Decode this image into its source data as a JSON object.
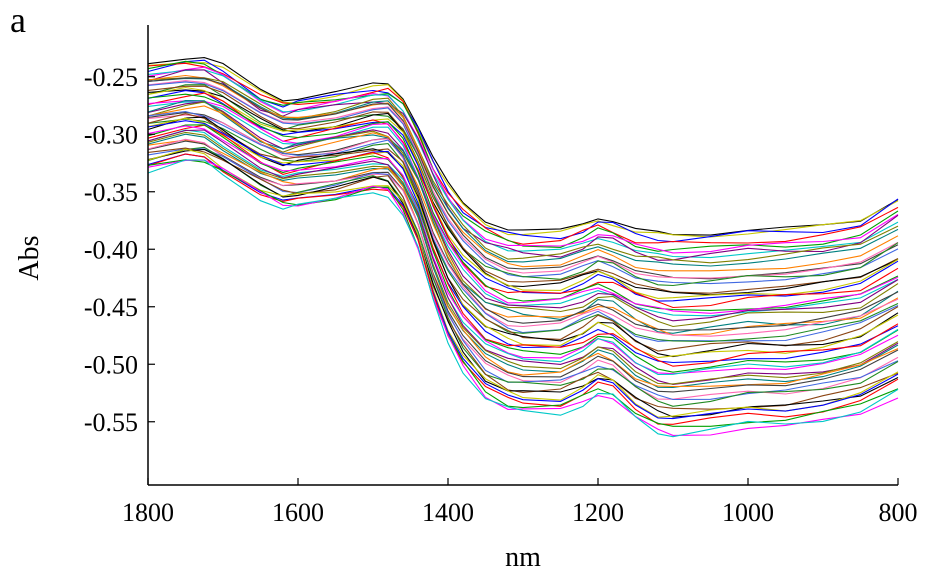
{
  "chart_data": {
    "type": "line",
    "panel_label": "a",
    "title": "",
    "xlabel": "nm",
    "ylabel": "Abs",
    "x_reversed": true,
    "xlim": [
      1800,
      800
    ],
    "ylim": [
      -0.605,
      -0.205
    ],
    "x_ticks": [
      1800,
      1600,
      1400,
      1200,
      1000,
      800
    ],
    "x_tick_labels": [
      "1800",
      "1600",
      "1400",
      "1200",
      "1000",
      "800"
    ],
    "y_ticks": [
      -0.25,
      -0.3,
      -0.35,
      -0.4,
      -0.45,
      -0.5,
      -0.55
    ],
    "y_tick_labels": [
      "-0.25",
      "-0.30",
      "-0.35",
      "-0.40",
      "-0.45",
      "-0.50",
      "-0.55"
    ],
    "grid": false,
    "legend": "none",
    "series_count": 55,
    "x": [
      1800,
      1750,
      1725,
      1700,
      1650,
      1620,
      1600,
      1550,
      1500,
      1480,
      1460,
      1440,
      1420,
      1400,
      1380,
      1350,
      1320,
      1300,
      1250,
      1220,
      1200,
      1180,
      1150,
      1120,
      1100,
      1050,
      1000,
      950,
      900,
      850,
      800
    ],
    "series_profile": {
      "top_edge": [
        -0.238,
        -0.233,
        -0.233,
        -0.24,
        -0.262,
        -0.27,
        -0.268,
        -0.263,
        -0.257,
        -0.257,
        -0.268,
        -0.292,
        -0.32,
        -0.343,
        -0.36,
        -0.375,
        -0.382,
        -0.384,
        -0.384,
        -0.378,
        -0.372,
        -0.375,
        -0.383,
        -0.386,
        -0.387,
        -0.386,
        -0.383,
        -0.382,
        -0.38,
        -0.375,
        -0.355
      ],
      "bottom_edge": [
        -0.332,
        -0.324,
        -0.325,
        -0.335,
        -0.355,
        -0.364,
        -0.363,
        -0.358,
        -0.35,
        -0.352,
        -0.37,
        -0.4,
        -0.445,
        -0.48,
        -0.505,
        -0.53,
        -0.54,
        -0.542,
        -0.543,
        -0.535,
        -0.527,
        -0.53,
        -0.548,
        -0.56,
        -0.563,
        -0.56,
        -0.555,
        -0.555,
        -0.55,
        -0.543,
        -0.527
      ]
    },
    "colors": [
      "#000000",
      "#c8c800",
      "#0000ff",
      "#ff0000",
      "#00a000",
      "#ff00ff",
      "#00c8c8",
      "#800080",
      "#808000",
      "#008080",
      "#ff8000",
      "#404040",
      "#ff69b4",
      "#4169e1",
      "#228b22",
      "#8b4513"
    ]
  }
}
